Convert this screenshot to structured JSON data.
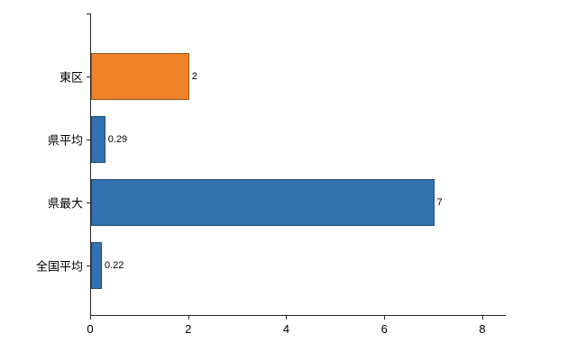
{
  "chart_data": {
    "type": "bar",
    "orientation": "horizontal",
    "title": "",
    "xlabel": "",
    "ylabel": "",
    "categories": [
      "東区",
      "県平均",
      "県最大",
      "全国平均"
    ],
    "values": [
      2,
      0.29,
      7,
      0.22
    ],
    "value_labels": [
      "2",
      "0.29",
      "7",
      "0.22"
    ],
    "bar_colors": [
      "#ee8227",
      "#3272b0",
      "#3272b0",
      "#3272b0"
    ],
    "xlim": [
      0,
      8.46
    ],
    "x_ticks": [
      0,
      2,
      4,
      6,
      8
    ],
    "x_tick_labels": [
      "0",
      "2",
      "4",
      "6",
      "8"
    ],
    "grid": false,
    "legend": "none"
  },
  "colors": {
    "orange_bar": "#ee8227",
    "blue_bar": "#3272b0",
    "axis": "#262626",
    "background": "#ffffff"
  }
}
